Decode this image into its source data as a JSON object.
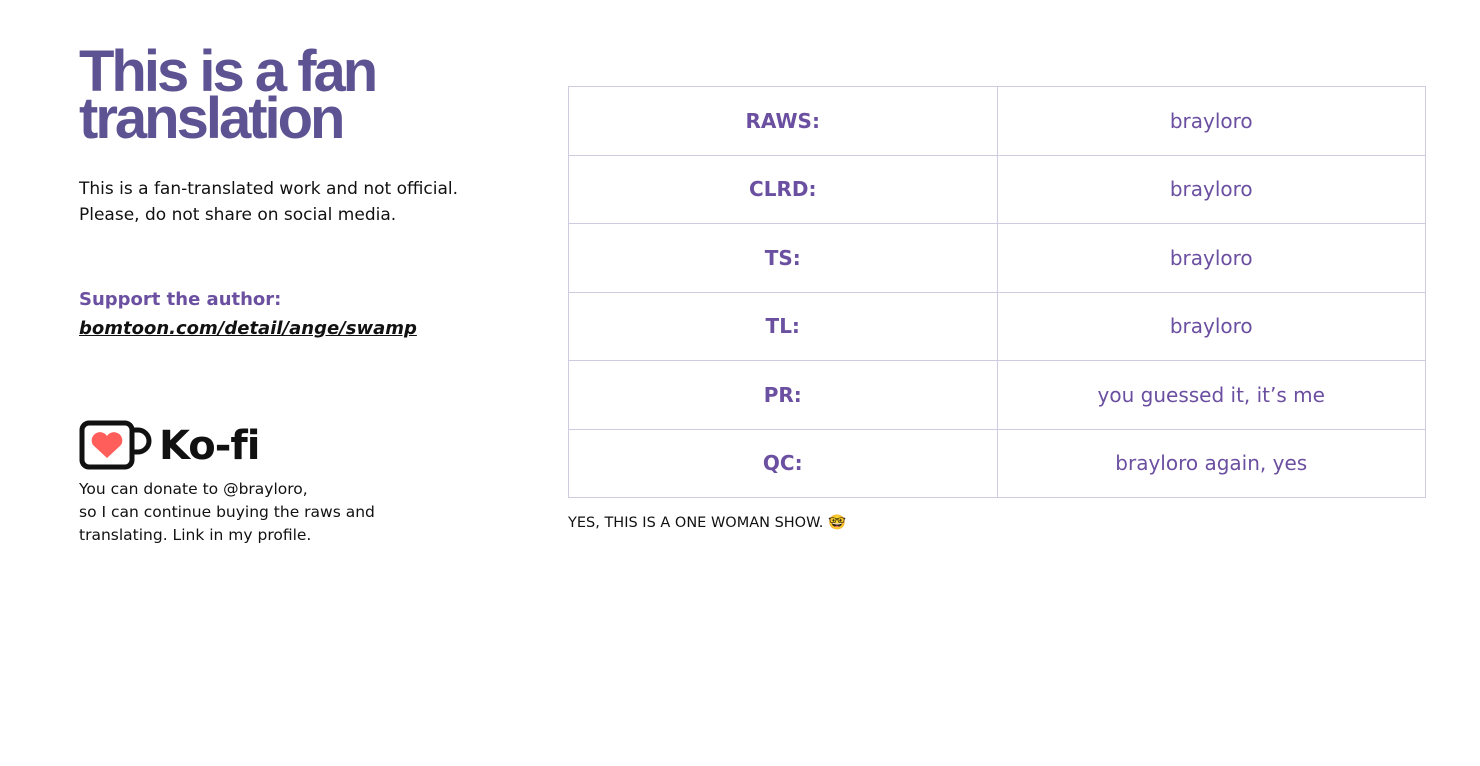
{
  "title_line1": "This is a fan",
  "title_line2": "translation",
  "intro": "This is a fan-translated work and not official. Please, do not share on social media.",
  "support_label": "Support the author:",
  "support_link": "bomtoon.com/detail/ange/swamp",
  "kofi": {
    "word": "Ko-fi",
    "icon": "kofi-cup-heart-icon",
    "heart_color": "#ff5e5b"
  },
  "donate_lines": [
    "You can donate to @brayloro,",
    "so I can continue buying the raws and",
    "translating. Link in my profile."
  ],
  "credits": [
    {
      "role": "RAWS:",
      "name": "brayloro"
    },
    {
      "role": "CLRD:",
      "name": "brayloro"
    },
    {
      "role": "TS:",
      "name": "brayloro"
    },
    {
      "role": "TL:",
      "name": "brayloro"
    },
    {
      "role": "PR:",
      "name": "you guessed it, it’s me"
    },
    {
      "role": "QC:",
      "name": "brayloro again, yes"
    }
  ],
  "note": "YES, THIS IS A ONE WOMAN SHOW.",
  "note_emoji": "🤓",
  "colors": {
    "title": "#5d5393",
    "accent": "#6b4fa0",
    "table_border": "#cfcbe0"
  }
}
